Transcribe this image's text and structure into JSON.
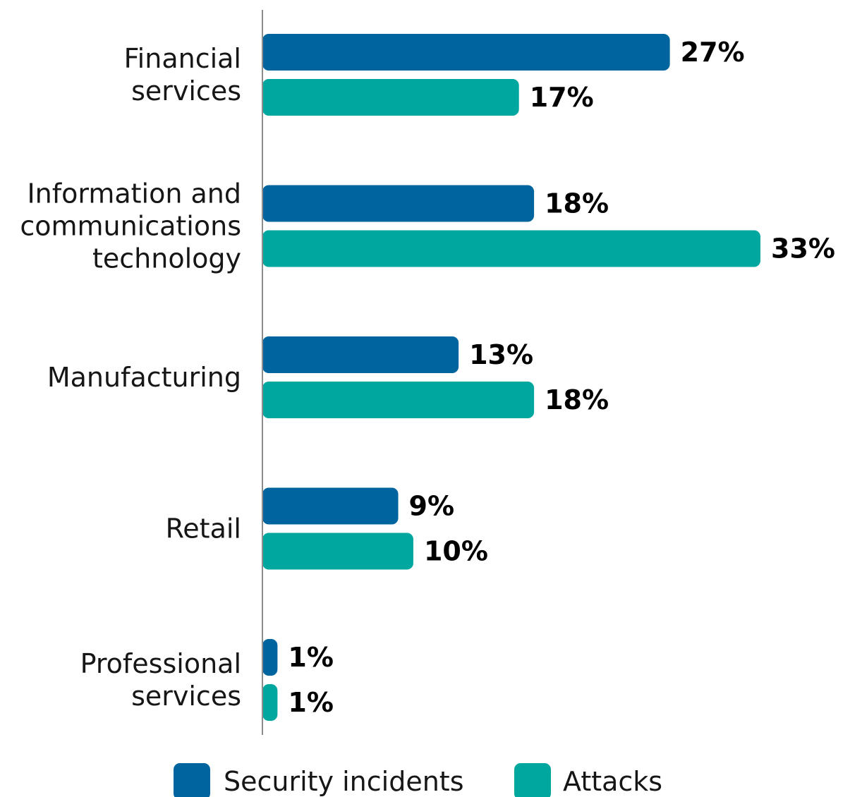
{
  "chart_data": {
    "type": "bar",
    "orientation": "horizontal",
    "categories": [
      [
        "Financial",
        "services"
      ],
      [
        "Information and",
        "communications",
        "technology"
      ],
      [
        "Manufacturing"
      ],
      [
        "Retail"
      ],
      [
        "Professional",
        "services"
      ]
    ],
    "series": [
      {
        "name": "Security incidents",
        "color": "#00659e",
        "values": [
          27,
          18,
          13,
          9,
          1
        ],
        "labels": [
          "27%",
          "18%",
          "13%",
          "9%",
          "1%"
        ]
      },
      {
        "name": "Attacks",
        "color": "#00a79e",
        "values": [
          17,
          33,
          18,
          10,
          1
        ],
        "labels": [
          "17%",
          "33%",
          "18%",
          "10%",
          "1%"
        ]
      }
    ],
    "xlim": [
      0,
      33
    ],
    "unit": "%",
    "grid": false,
    "legend_position": "bottom"
  }
}
